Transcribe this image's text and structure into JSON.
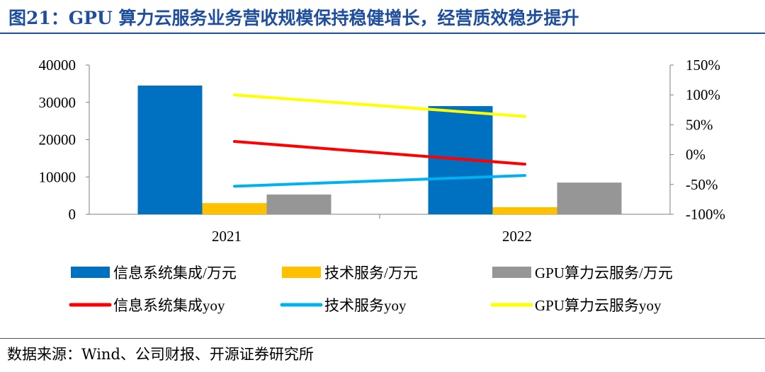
{
  "title": "图21：GPU 算力云服务业务营收规模保持稳健增长，经营质效稳步提升",
  "source": "数据来源：Wind、公司财报、开源证券研究所",
  "chart_data": {
    "type": "bar",
    "categories": [
      "2021",
      "2022"
    ],
    "y_left": {
      "ticks": [
        "40000",
        "30000",
        "20000",
        "10000",
        "0"
      ],
      "ylim": [
        0,
        40000
      ]
    },
    "y_right": {
      "ticks": [
        "150%",
        "100%",
        "50%",
        "0%",
        "-50%",
        "-100%"
      ],
      "ylim": [
        -100,
        150
      ]
    },
    "bar_series": [
      {
        "name": "信息系统集成/万元",
        "color": "#0070c0",
        "values": [
          34500,
          29000
        ]
      },
      {
        "name": "技术服务/万元",
        "color": "#ffc000",
        "values": [
          3000,
          1900
        ]
      },
      {
        "name": "GPU算力云服务/万元",
        "color": "#969696",
        "values": [
          5300,
          8500
        ]
      }
    ],
    "line_series": [
      {
        "name": "信息系统集成yoy",
        "color": "#ff0000",
        "values": [
          22,
          -16
        ]
      },
      {
        "name": "技术服务yoy",
        "color": "#00b0f0",
        "values": [
          -53,
          -35
        ]
      },
      {
        "name": "GPU算力云服务yoy",
        "color": "#ffff00",
        "values": [
          100,
          64
        ]
      }
    ],
    "legend_position": "bottom"
  }
}
